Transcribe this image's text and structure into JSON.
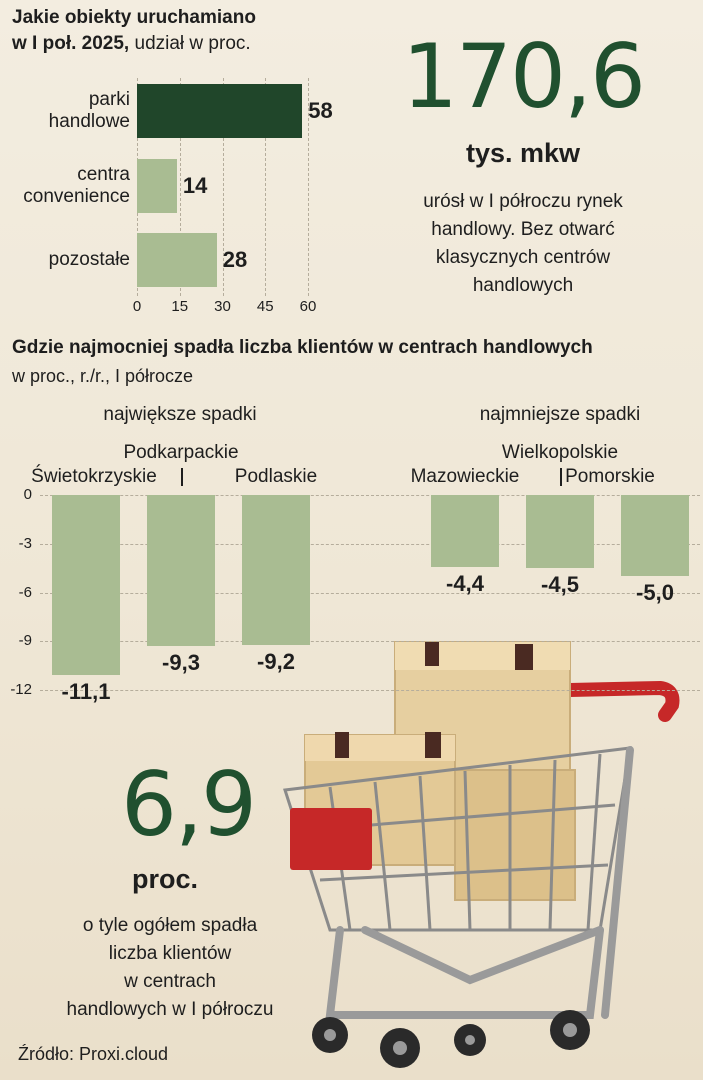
{
  "chart_data": [
    {
      "type": "bar",
      "orientation": "horizontal",
      "title": "Jakie obiekty uruchamiano",
      "subtitle_bold": "w I poł. 2025,",
      "subtitle_rest": " udział w proc.",
      "categories": [
        "parki handlowe",
        "centra convenience",
        "pozostałe"
      ],
      "category_lines": [
        [
          "parki",
          "handlowe"
        ],
        [
          "centra",
          "convenience"
        ],
        [
          "pozostałe"
        ]
      ],
      "values": [
        58,
        14,
        28
      ],
      "value_labels": [
        "58",
        "14",
        "28"
      ],
      "colors": [
        "#20462a",
        "#a9bc92",
        "#a9bc92"
      ],
      "xlim": [
        0,
        60
      ],
      "xticks": [
        "0",
        "15",
        "30",
        "45",
        "60"
      ],
      "grid": true
    },
    {
      "type": "bar",
      "title": "Gdzie najmocniej spadła liczba klientów w centrach handlowych",
      "subtitle": "w proc., r./r., I półrocze",
      "groups": [
        "największe spadki",
        "najmniejsze spadki"
      ],
      "categories": [
        "Świetokrzyskie",
        "Podkarpackie",
        "Podlaskie",
        "Mazowieckie",
        "Wielkopolskie",
        "Pomorskie"
      ],
      "values": [
        -11.1,
        -9.3,
        -9.2,
        -4.4,
        -4.5,
        -5.0
      ],
      "value_labels": [
        "-11,1",
        "-9,3",
        "-9,2",
        "-4,4",
        "-4,5",
        "-5,0"
      ],
      "ylim": [
        -12,
        0
      ],
      "yticks": [
        "0",
        "-3",
        "-6",
        "-9",
        "-12"
      ],
      "grid": true
    }
  ],
  "callout1": {
    "value": "170,6",
    "unit": "tys. mkw",
    "lines": [
      "urósł w I półroczu rynek",
      "handlowy. Bez otwarć",
      "klasycznych centrów",
      "handlowych"
    ]
  },
  "callout2": {
    "value": "6,9",
    "unit": "proc.",
    "lines": [
      "o tyle ogółem spadła",
      "liczba klientów",
      "w centrach",
      "handlowych w I półroczu"
    ]
  },
  "source": "Źródło: Proxi.cloud",
  "colors": {
    "dark_green": "#20462a",
    "light_green": "#a9bc92",
    "big_number": "#20502f",
    "cart_handle": "#c62828"
  },
  "illustration": "shopping-cart-with-boxes"
}
